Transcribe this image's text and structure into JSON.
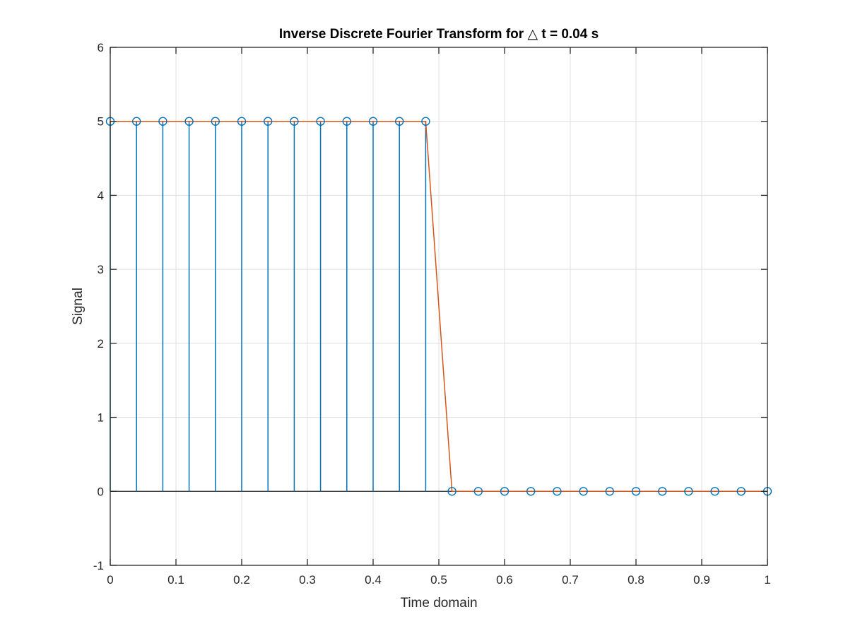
{
  "chart_data": {
    "type": "stem",
    "title": "Inverse Discrete Fourier Transform for △ t = 0.04 s",
    "xlabel": "Time domain",
    "ylabel": "Signal",
    "xlim": [
      0,
      1
    ],
    "ylim": [
      -1,
      6
    ],
    "xticks": [
      0,
      0.1,
      0.2,
      0.3,
      0.4,
      0.5,
      0.6,
      0.7,
      0.8,
      0.9,
      1
    ],
    "xtick_labels": [
      "0",
      "0.1",
      "0.2",
      "0.3",
      "0.4",
      "0.5",
      "0.6",
      "0.7",
      "0.8",
      "0.9",
      "1"
    ],
    "yticks": [
      -1,
      0,
      1,
      2,
      3,
      4,
      5,
      6
    ],
    "ytick_labels": [
      "-1",
      "0",
      "1",
      "2",
      "3",
      "4",
      "5",
      "6"
    ],
    "grid": true,
    "series": [
      {
        "type": "stem",
        "color": "#0072BD",
        "marker": "circle",
        "x": [
          0,
          0.04,
          0.08,
          0.12,
          0.16,
          0.2,
          0.24,
          0.28,
          0.32,
          0.36,
          0.4,
          0.44,
          0.48,
          0.52,
          0.56,
          0.6,
          0.64,
          0.68,
          0.72,
          0.76,
          0.8,
          0.84,
          0.88,
          0.92,
          0.96,
          1.0
        ],
        "y": [
          5,
          5,
          5,
          5,
          5,
          5,
          5,
          5,
          5,
          5,
          5,
          5,
          5,
          0,
          0,
          0,
          0,
          0,
          0,
          0,
          0,
          0,
          0,
          0,
          0,
          0
        ]
      },
      {
        "type": "line",
        "color": "#D95319",
        "x": [
          0,
          0.04,
          0.08,
          0.12,
          0.16,
          0.2,
          0.24,
          0.28,
          0.32,
          0.36,
          0.4,
          0.44,
          0.48,
          0.52,
          0.56,
          0.6,
          0.64,
          0.68,
          0.72,
          0.76,
          0.8,
          0.84,
          0.88,
          0.92,
          0.96,
          1.0
        ],
        "y": [
          5,
          5,
          5,
          5,
          5,
          5,
          5,
          5,
          5,
          5,
          5,
          5,
          5,
          0,
          0,
          0,
          0,
          0,
          0,
          0,
          0,
          0,
          0,
          0,
          0,
          0
        ]
      }
    ]
  }
}
